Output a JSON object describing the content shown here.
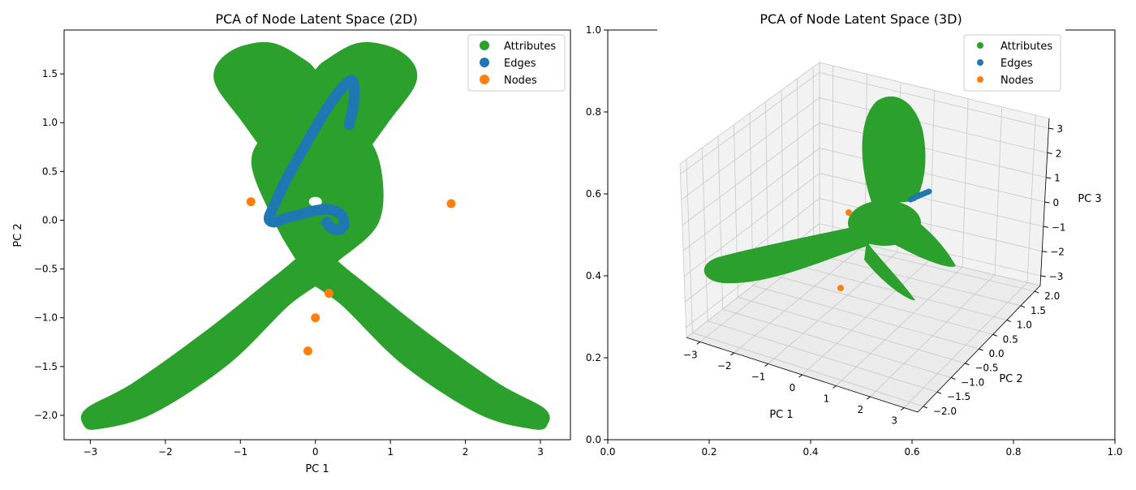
{
  "colors": {
    "attributes": "#2ca02c",
    "edges": "#1f77b4",
    "nodes": "#ff7f0e",
    "axis": "#000000",
    "pane": "#f2f2f2",
    "grid": "#c8c8c8"
  },
  "chart_data": [
    {
      "type": "scatter",
      "title": "PCA of Node Latent Space (2D)",
      "xlabel": "PC 1",
      "ylabel": "PC 2",
      "xlim": [
        -3.35,
        3.4
      ],
      "ylim": [
        -2.25,
        1.95
      ],
      "xticks": [
        -3,
        -2,
        -1,
        0,
        1,
        2,
        3
      ],
      "xtick_labels": [
        "−3",
        "−2",
        "−1",
        "0",
        "1",
        "2",
        "3"
      ],
      "yticks": [
        -2.0,
        -1.5,
        -1.0,
        -0.5,
        0.0,
        0.5,
        1.0,
        1.5
      ],
      "ytick_labels": [
        "−2.0",
        "−1.5",
        "−1.0",
        "−0.5",
        "0.0",
        "0.5",
        "1.0",
        "1.5"
      ],
      "grid": false,
      "legend_position": "upper-right",
      "series": [
        {
          "name": "Attributes",
          "color_key": "attributes",
          "shape": "dense cloud",
          "lobes": [
            {
              "name": "upper-left heart lobe",
              "outline": [
                [
                  0.0,
                  0.3
                ],
                [
                  -0.45,
                  0.55
                ],
                [
                  -0.95,
                  1.05
                ],
                [
                  -1.3,
                  1.45
                ],
                [
                  -1.1,
                  1.7
                ],
                [
                  -0.6,
                  1.78
                ],
                [
                  -0.15,
                  1.6
                ],
                [
                  0.0,
                  1.5
                ],
                [
                  0.15,
                  1.6
                ],
                [
                  0.6,
                  1.78
                ],
                [
                  1.1,
                  1.7
                ],
                [
                  1.3,
                  1.45
                ],
                [
                  0.95,
                  1.05
                ],
                [
                  0.45,
                  0.55
                ],
                [
                  0.0,
                  0.3
                ]
              ]
            },
            {
              "name": "center body",
              "outline": [
                [
                  -0.8,
                  0.6
                ],
                [
                  -0.5,
                  0.0
                ],
                [
                  -0.2,
                  -0.4
                ],
                [
                  0.0,
                  -0.6
                ],
                [
                  0.25,
                  -0.4
                ],
                [
                  0.8,
                  0.0
                ],
                [
                  0.8,
                  0.6
                ],
                [
                  0.5,
                  0.9
                ],
                [
                  0.0,
                  0.8
                ],
                [
                  -0.5,
                  0.9
                ]
              ]
            },
            {
              "name": "lower-left tail",
              "outline": [
                [
                  -0.05,
                  -0.35
                ],
                [
                  -0.5,
                  -0.6
                ],
                [
                  -1.4,
                  -1.15
                ],
                [
                  -2.4,
                  -1.7
                ],
                [
                  -3.0,
                  -1.95
                ],
                [
                  -3.05,
                  -2.07
                ],
                [
                  -2.9,
                  -2.1
                ],
                [
                  -2.2,
                  -1.95
                ],
                [
                  -1.2,
                  -1.45
                ],
                [
                  -0.4,
                  -0.85
                ],
                [
                  0.1,
                  -0.55
                ]
              ]
            },
            {
              "name": "lower-right tail",
              "outline": [
                [
                  0.05,
                  -0.35
                ],
                [
                  0.5,
                  -0.6
                ],
                [
                  1.4,
                  -1.15
                ],
                [
                  2.4,
                  -1.7
                ],
                [
                  3.0,
                  -1.95
                ],
                [
                  3.05,
                  -2.07
                ],
                [
                  2.9,
                  -2.1
                ],
                [
                  2.2,
                  -1.95
                ],
                [
                  1.2,
                  -1.45
                ],
                [
                  0.4,
                  -0.85
                ],
                [
                  -0.1,
                  -0.55
                ]
              ]
            }
          ]
        },
        {
          "name": "Edges",
          "color_key": "edges",
          "curve": [
            [
              0.45,
              0.98
            ],
            [
              0.5,
              1.15
            ],
            [
              0.52,
              1.3
            ],
            [
              0.5,
              1.42
            ],
            [
              0.46,
              1.43
            ],
            [
              0.35,
              1.35
            ],
            [
              0.2,
              1.2
            ],
            [
              0.0,
              0.95
            ],
            [
              -0.2,
              0.68
            ],
            [
              -0.4,
              0.4
            ],
            [
              -0.55,
              0.15
            ],
            [
              -0.62,
              0.02
            ],
            [
              -0.55,
              -0.02
            ],
            [
              -0.4,
              0.02
            ],
            [
              -0.2,
              0.06
            ],
            [
              0.0,
              0.1
            ],
            [
              0.2,
              0.11
            ],
            [
              0.35,
              0.05
            ],
            [
              0.38,
              -0.05
            ],
            [
              0.3,
              -0.1
            ],
            [
              0.2,
              -0.07
            ],
            [
              0.15,
              -0.02
            ]
          ]
        },
        {
          "name": "Nodes",
          "color_key": "nodes",
          "points": [
            [
              -0.86,
              0.19
            ],
            [
              1.81,
              0.17
            ],
            [
              0.18,
              -0.75
            ],
            [
              0.0,
              -1.0
            ],
            [
              -0.1,
              -1.34
            ]
          ]
        }
      ]
    },
    {
      "type": "scatter",
      "title": "PCA of Node Latent Space (3D)",
      "xlabel": "PC 1",
      "ylabel": "PC 2",
      "zlabel": "PC 3",
      "xlim": [
        -3.4,
        3.4
      ],
      "ylim": [
        -2.2,
        2.2
      ],
      "zlim": [
        -3.4,
        3.4
      ],
      "xticks": [
        -3,
        -2,
        -1,
        0,
        1,
        2,
        3
      ],
      "xtick_labels": [
        "−3",
        "−2",
        "−1",
        "0",
        "1",
        "2",
        "3"
      ],
      "yticks": [
        -2.0,
        -1.5,
        -1.0,
        -0.5,
        0.0,
        0.5,
        1.0,
        1.5,
        2.0
      ],
      "ytick_labels": [
        "−2.0",
        "−1.5",
        "−1.0",
        "−0.5",
        "0.0",
        "0.5",
        "1.0",
        "1.5",
        "2.0"
      ],
      "zticks": [
        -3,
        -2,
        -1,
        0,
        1,
        2,
        3
      ],
      "ztick_labels": [
        "−3",
        "−2",
        "−1",
        "0",
        "1",
        "2",
        "3"
      ],
      "frame_ticks": [
        0.0,
        0.2,
        0.4,
        0.6,
        0.8,
        1.0
      ],
      "frame_tick_labels": [
        "0.0",
        "0.2",
        "0.4",
        "0.6",
        "0.8",
        "1.0"
      ],
      "grid": true,
      "legend_position": "upper-right",
      "series": [
        {
          "name": "Attributes",
          "color_key": "attributes",
          "shape": "three-petal surface"
        },
        {
          "name": "Edges",
          "color_key": "edges",
          "shape": "short curve"
        },
        {
          "name": "Nodes",
          "color_key": "nodes",
          "shape": "scattered points"
        }
      ]
    }
  ]
}
